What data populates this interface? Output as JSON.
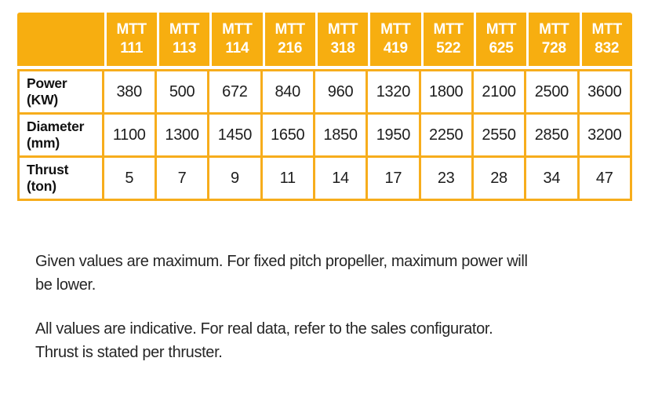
{
  "colors": {
    "header_bg": "#F7AE10",
    "cell_border": "#F7AD1C",
    "header_divider": "#FFFFFF",
    "header_text": "#FFFFFF",
    "cell_text": "#1D1D1D",
    "note_text": "#262626"
  },
  "table": {
    "corner_label": "",
    "columns": [
      {
        "line1": "MTT",
        "line2": "111"
      },
      {
        "line1": "MTT",
        "line2": "113"
      },
      {
        "line1": "MTT",
        "line2": "114"
      },
      {
        "line1": "MTT",
        "line2": "216"
      },
      {
        "line1": "MTT",
        "line2": "318"
      },
      {
        "line1": "MTT",
        "line2": "419"
      },
      {
        "line1": "MTT",
        "line2": "522"
      },
      {
        "line1": "MTT",
        "line2": "625"
      },
      {
        "line1": "MTT",
        "line2": "728"
      },
      {
        "line1": "MTT",
        "line2": "832"
      }
    ],
    "rows": [
      {
        "label_line1": "Power",
        "label_line2": "(KW)",
        "values": [
          "380",
          "500",
          "672",
          "840",
          "960",
          "1320",
          "1800",
          "2100",
          "2500",
          "3600"
        ]
      },
      {
        "label_line1": "Diameter",
        "label_line2": "(mm)",
        "values": [
          "1100",
          "1300",
          "1450",
          "1650",
          "1850",
          "1950",
          "2250",
          "2550",
          "2850",
          "3200"
        ]
      },
      {
        "label_line1": "Thrust",
        "label_line2": "(ton)",
        "values": [
          "5",
          "7",
          "9",
          "11",
          "14",
          "17",
          "23",
          "28",
          "34",
          "47"
        ]
      }
    ]
  },
  "notes": {
    "para1": {
      "line1": "Given values are maximum. For fixed pitch propeller, maximum power will",
      "line2": "be lower."
    },
    "para2": {
      "line1": "All values are indicative. For real data, refer to the sales configurator.",
      "line2": "Thrust is stated per thruster."
    }
  }
}
